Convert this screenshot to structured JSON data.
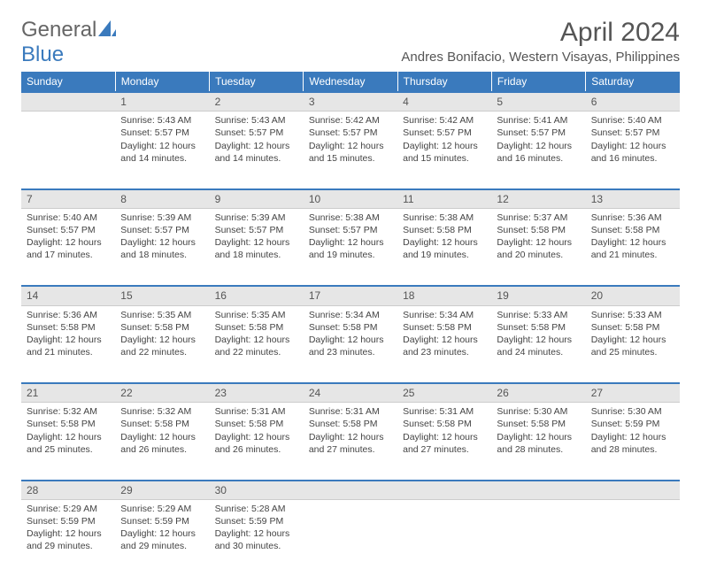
{
  "logo": {
    "general": "General",
    "blue": "Blue"
  },
  "title": "April 2024",
  "location": "Andres Bonifacio, Western Visayas, Philippines",
  "colors": {
    "header_bg": "#3a7abd",
    "header_text": "#ffffff",
    "daynum_bg": "#e6e6e6",
    "border_top": "#3a7abd",
    "text": "#444444"
  },
  "day_headers": [
    "Sunday",
    "Monday",
    "Tuesday",
    "Wednesday",
    "Thursday",
    "Friday",
    "Saturday"
  ],
  "weeks": [
    {
      "nums": [
        "",
        "1",
        "2",
        "3",
        "4",
        "5",
        "6"
      ],
      "cells": [
        {
          "sunrise": "",
          "sunset": "",
          "daylight": ""
        },
        {
          "sunrise": "Sunrise: 5:43 AM",
          "sunset": "Sunset: 5:57 PM",
          "daylight": "Daylight: 12 hours and 14 minutes."
        },
        {
          "sunrise": "Sunrise: 5:43 AM",
          "sunset": "Sunset: 5:57 PM",
          "daylight": "Daylight: 12 hours and 14 minutes."
        },
        {
          "sunrise": "Sunrise: 5:42 AM",
          "sunset": "Sunset: 5:57 PM",
          "daylight": "Daylight: 12 hours and 15 minutes."
        },
        {
          "sunrise": "Sunrise: 5:42 AM",
          "sunset": "Sunset: 5:57 PM",
          "daylight": "Daylight: 12 hours and 15 minutes."
        },
        {
          "sunrise": "Sunrise: 5:41 AM",
          "sunset": "Sunset: 5:57 PM",
          "daylight": "Daylight: 12 hours and 16 minutes."
        },
        {
          "sunrise": "Sunrise: 5:40 AM",
          "sunset": "Sunset: 5:57 PM",
          "daylight": "Daylight: 12 hours and 16 minutes."
        }
      ]
    },
    {
      "nums": [
        "7",
        "8",
        "9",
        "10",
        "11",
        "12",
        "13"
      ],
      "cells": [
        {
          "sunrise": "Sunrise: 5:40 AM",
          "sunset": "Sunset: 5:57 PM",
          "daylight": "Daylight: 12 hours and 17 minutes."
        },
        {
          "sunrise": "Sunrise: 5:39 AM",
          "sunset": "Sunset: 5:57 PM",
          "daylight": "Daylight: 12 hours and 18 minutes."
        },
        {
          "sunrise": "Sunrise: 5:39 AM",
          "sunset": "Sunset: 5:57 PM",
          "daylight": "Daylight: 12 hours and 18 minutes."
        },
        {
          "sunrise": "Sunrise: 5:38 AM",
          "sunset": "Sunset: 5:57 PM",
          "daylight": "Daylight: 12 hours and 19 minutes."
        },
        {
          "sunrise": "Sunrise: 5:38 AM",
          "sunset": "Sunset: 5:58 PM",
          "daylight": "Daylight: 12 hours and 19 minutes."
        },
        {
          "sunrise": "Sunrise: 5:37 AM",
          "sunset": "Sunset: 5:58 PM",
          "daylight": "Daylight: 12 hours and 20 minutes."
        },
        {
          "sunrise": "Sunrise: 5:36 AM",
          "sunset": "Sunset: 5:58 PM",
          "daylight": "Daylight: 12 hours and 21 minutes."
        }
      ]
    },
    {
      "nums": [
        "14",
        "15",
        "16",
        "17",
        "18",
        "19",
        "20"
      ],
      "cells": [
        {
          "sunrise": "Sunrise: 5:36 AM",
          "sunset": "Sunset: 5:58 PM",
          "daylight": "Daylight: 12 hours and 21 minutes."
        },
        {
          "sunrise": "Sunrise: 5:35 AM",
          "sunset": "Sunset: 5:58 PM",
          "daylight": "Daylight: 12 hours and 22 minutes."
        },
        {
          "sunrise": "Sunrise: 5:35 AM",
          "sunset": "Sunset: 5:58 PM",
          "daylight": "Daylight: 12 hours and 22 minutes."
        },
        {
          "sunrise": "Sunrise: 5:34 AM",
          "sunset": "Sunset: 5:58 PM",
          "daylight": "Daylight: 12 hours and 23 minutes."
        },
        {
          "sunrise": "Sunrise: 5:34 AM",
          "sunset": "Sunset: 5:58 PM",
          "daylight": "Daylight: 12 hours and 23 minutes."
        },
        {
          "sunrise": "Sunrise: 5:33 AM",
          "sunset": "Sunset: 5:58 PM",
          "daylight": "Daylight: 12 hours and 24 minutes."
        },
        {
          "sunrise": "Sunrise: 5:33 AM",
          "sunset": "Sunset: 5:58 PM",
          "daylight": "Daylight: 12 hours and 25 minutes."
        }
      ]
    },
    {
      "nums": [
        "21",
        "22",
        "23",
        "24",
        "25",
        "26",
        "27"
      ],
      "cells": [
        {
          "sunrise": "Sunrise: 5:32 AM",
          "sunset": "Sunset: 5:58 PM",
          "daylight": "Daylight: 12 hours and 25 minutes."
        },
        {
          "sunrise": "Sunrise: 5:32 AM",
          "sunset": "Sunset: 5:58 PM",
          "daylight": "Daylight: 12 hours and 26 minutes."
        },
        {
          "sunrise": "Sunrise: 5:31 AM",
          "sunset": "Sunset: 5:58 PM",
          "daylight": "Daylight: 12 hours and 26 minutes."
        },
        {
          "sunrise": "Sunrise: 5:31 AM",
          "sunset": "Sunset: 5:58 PM",
          "daylight": "Daylight: 12 hours and 27 minutes."
        },
        {
          "sunrise": "Sunrise: 5:31 AM",
          "sunset": "Sunset: 5:58 PM",
          "daylight": "Daylight: 12 hours and 27 minutes."
        },
        {
          "sunrise": "Sunrise: 5:30 AM",
          "sunset": "Sunset: 5:58 PM",
          "daylight": "Daylight: 12 hours and 28 minutes."
        },
        {
          "sunrise": "Sunrise: 5:30 AM",
          "sunset": "Sunset: 5:59 PM",
          "daylight": "Daylight: 12 hours and 28 minutes."
        }
      ]
    },
    {
      "nums": [
        "28",
        "29",
        "30",
        "",
        "",
        "",
        ""
      ],
      "cells": [
        {
          "sunrise": "Sunrise: 5:29 AM",
          "sunset": "Sunset: 5:59 PM",
          "daylight": "Daylight: 12 hours and 29 minutes."
        },
        {
          "sunrise": "Sunrise: 5:29 AM",
          "sunset": "Sunset: 5:59 PM",
          "daylight": "Daylight: 12 hours and 29 minutes."
        },
        {
          "sunrise": "Sunrise: 5:28 AM",
          "sunset": "Sunset: 5:59 PM",
          "daylight": "Daylight: 12 hours and 30 minutes."
        },
        {
          "sunrise": "",
          "sunset": "",
          "daylight": ""
        },
        {
          "sunrise": "",
          "sunset": "",
          "daylight": ""
        },
        {
          "sunrise": "",
          "sunset": "",
          "daylight": ""
        },
        {
          "sunrise": "",
          "sunset": "",
          "daylight": ""
        }
      ]
    }
  ]
}
